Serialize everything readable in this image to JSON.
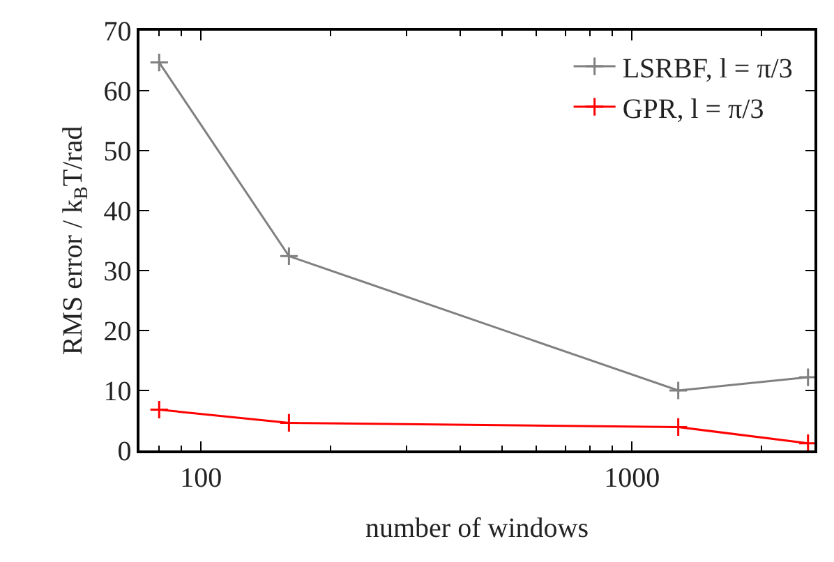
{
  "chart_data": {
    "type": "line",
    "xlabel": "number of windows",
    "ylabel": "RMS error / k$_{B}$T/rad",
    "x": [
      80,
      160,
      1280,
      2560
    ],
    "series": [
      {
        "name": "LSRBF, l = π/3",
        "color": "#808080",
        "values": [
          64.7,
          32.4,
          10.0,
          12.2
        ]
      },
      {
        "name": "GPR, l = π/3",
        "color": "#ff0000",
        "values": [
          6.8,
          4.6,
          3.9,
          1.2
        ]
      }
    ],
    "log": "x",
    "xlim": [
      72,
      2650
    ],
    "xticks": [
      100,
      1000
    ],
    "ylim": [
      0,
      70
    ],
    "yticks": [
      0,
      10,
      20,
      30,
      40,
      50,
      60,
      70
    ],
    "grid": false,
    "legend": "top right",
    "marker": "cross",
    "line_style": "solid"
  }
}
